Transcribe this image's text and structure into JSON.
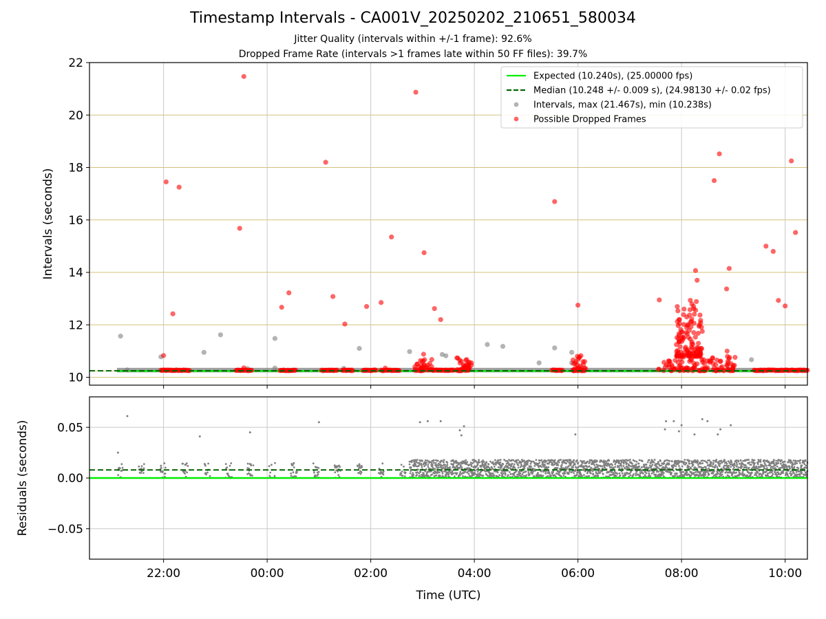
{
  "title": "Timestamp Intervals - CA001V_20250202_210651_580034",
  "subtitle_1": "Jitter Quality (intervals within +/-1 frame): 92.6%",
  "subtitle_2": "Dropped Frame Rate (intervals >1 frames late within 50 FF files): 39.7%",
  "colors": {
    "expected": "#00ee00",
    "median": "#006400",
    "intervals": "#808080",
    "dropped": "#ff0000",
    "hgrid": "#d4c17a",
    "vgrid": "#c8c8c8",
    "band": "#808080"
  },
  "chart_data": [
    {
      "type": "scatter",
      "xlabel": "",
      "ylabel": "Intervals (seconds)",
      "x_axis": "time (UTC), hours relative to 00:00 on 2025-02-03",
      "xlim": [
        -3.43,
        10.43
      ],
      "ylim": [
        9.7,
        22.0
      ],
      "yticks": [
        10,
        12,
        14,
        16,
        18,
        20,
        22
      ],
      "ytick_labels": [
        "10",
        "12",
        "14",
        "16",
        "18",
        "20",
        "22"
      ],
      "xticks": [
        -2,
        0,
        2,
        4,
        6,
        8,
        10
      ],
      "grid": {
        "horizontal": true,
        "vertical": true
      },
      "legend_position": "top-right",
      "series": [
        {
          "name": "Expected (10.240s), (25.00000 fps)",
          "kind": "line",
          "style": "solid",
          "y": 10.24,
          "x_range": [
            -2.9,
            10.43
          ]
        },
        {
          "name": "Median (10.248 +/- 0.009 s), (24.98130 +/- 0.02 fps)",
          "kind": "line",
          "style": "dashed",
          "y": 10.248,
          "x_range": [
            -3.43,
            10.43
          ]
        },
        {
          "name": "Intervals, max (21.467s), min (10.238s)",
          "kind": "scatter",
          "band": {
            "x_range": [
              -2.9,
              10.4
            ],
            "y_range": [
              10.24,
              10.36
            ]
          },
          "points": [
            [
              -2.83,
              11.57
            ],
            [
              -2.7,
              10.28
            ],
            [
              -2.05,
              10.78
            ],
            [
              -1.22,
              10.95
            ],
            [
              -0.9,
              11.62
            ],
            [
              -0.38,
              10.33
            ],
            [
              0.15,
              11.48
            ],
            [
              0.15,
              10.35
            ],
            [
              1.48,
              10.34
            ],
            [
              1.78,
              11.1
            ],
            [
              2.75,
              10.98
            ],
            [
              3.38,
              10.87
            ],
            [
              3.45,
              10.82
            ],
            [
              4.25,
              11.25
            ],
            [
              4.55,
              11.18
            ],
            [
              5.25,
              10.55
            ],
            [
              5.55,
              11.12
            ],
            [
              5.88,
              10.95
            ],
            [
              5.88,
              10.55
            ],
            [
              9.35,
              10.67
            ]
          ]
        },
        {
          "name": "Possible Dropped Frames",
          "kind": "scatter",
          "points": [
            [
              -0.45,
              21.47
            ],
            [
              2.87,
              20.87
            ],
            [
              1.13,
              18.2
            ],
            [
              -1.95,
              17.45
            ],
            [
              -1.7,
              17.25
            ],
            [
              5.55,
              16.7
            ],
            [
              8.73,
              18.52
            ],
            [
              8.63,
              17.5
            ],
            [
              10.12,
              18.25
            ],
            [
              -0.53,
              15.68
            ],
            [
              2.4,
              15.35
            ],
            [
              10.2,
              15.52
            ],
            [
              9.63,
              15.0
            ],
            [
              9.77,
              14.8
            ],
            [
              3.03,
              14.75
            ],
            [
              8.27,
              14.07
            ],
            [
              8.92,
              14.15
            ],
            [
              8.3,
              13.7
            ],
            [
              0.42,
              13.22
            ],
            [
              8.87,
              13.37
            ],
            [
              1.27,
              13.08
            ],
            [
              0.28,
              12.67
            ],
            [
              2.2,
              12.85
            ],
            [
              1.92,
              12.7
            ],
            [
              9.87,
              12.93
            ],
            [
              10.0,
              12.72
            ],
            [
              6.0,
              12.75
            ],
            [
              7.57,
              12.95
            ],
            [
              3.23,
              12.62
            ],
            [
              3.35,
              12.2
            ],
            [
              -1.82,
              12.42
            ],
            [
              1.5,
              12.03
            ],
            [
              8.1,
              12.3
            ],
            [
              8.4,
              11.75
            ],
            [
              -2.0,
              10.83
            ],
            [
              3.02,
              10.88
            ],
            [
              8.88,
              11.0
            ],
            [
              8.2,
              11.35
            ],
            [
              7.95,
              11.6
            ],
            [
              -0.45,
              10.36
            ],
            [
              2.28,
              10.35
            ]
          ],
          "clusters": [
            {
              "x_range": [
                -2.05,
                -1.5
              ],
              "y_range": [
                10.25,
                10.28
              ]
            },
            {
              "x_range": [
                -0.6,
                -0.3
              ],
              "y_range": [
                10.25,
                10.28
              ]
            },
            {
              "x_range": [
                0.25,
                0.55
              ],
              "y_range": [
                10.25,
                10.28
              ]
            },
            {
              "x_range": [
                1.05,
                1.35
              ],
              "y_range": [
                10.25,
                10.28
              ]
            },
            {
              "x_range": [
                1.45,
                1.65
              ],
              "y_range": [
                10.25,
                10.28
              ]
            },
            {
              "x_range": [
                1.85,
                2.1
              ],
              "y_range": [
                10.25,
                10.28
              ]
            },
            {
              "x_range": [
                2.2,
                2.55
              ],
              "y_range": [
                10.25,
                10.28
              ]
            },
            {
              "x_range": [
                2.85,
                3.2
              ],
              "y_range": [
                10.25,
                10.7
              ]
            },
            {
              "x_range": [
                3.2,
                3.6
              ],
              "y_range": [
                10.25,
                10.28
              ]
            },
            {
              "x_range": [
                3.65,
                3.95
              ],
              "y_range": [
                10.25,
                10.75
              ]
            },
            {
              "x_range": [
                5.5,
                5.7
              ],
              "y_range": [
                10.25,
                10.28
              ]
            },
            {
              "x_range": [
                5.9,
                6.15
              ],
              "y_range": [
                10.25,
                10.85
              ]
            },
            {
              "x_range": [
                7.55,
                9.05
              ],
              "y_range": [
                10.25,
                10.8
              ]
            },
            {
              "x_range": [
                7.9,
                8.4
              ],
              "y_range": [
                10.8,
                13.1
              ]
            },
            {
              "x_range": [
                9.4,
                10.43
              ],
              "y_range": [
                10.25,
                10.28
              ]
            }
          ]
        }
      ]
    },
    {
      "type": "scatter",
      "xlabel": "Time (UTC)",
      "ylabel": "Residuals (seconds)",
      "xlim": [
        -3.43,
        10.43
      ],
      "ylim": [
        -0.08,
        0.08
      ],
      "yticks": [
        -0.05,
        0.0,
        0.05
      ],
      "ytick_labels": [
        "−0.05",
        "0.00",
        "0.05"
      ],
      "xticks": [
        -2,
        0,
        2,
        4,
        6,
        8,
        10
      ],
      "xtick_labels": [
        "22:00",
        "00:00",
        "02:00",
        "04:00",
        "06:00",
        "08:00",
        "10:00"
      ],
      "grid": {
        "horizontal": true,
        "vertical": true
      },
      "series": [
        {
          "name": "Expected",
          "kind": "line",
          "style": "solid",
          "y": 0.0
        },
        {
          "name": "Median",
          "kind": "line",
          "style": "dashed",
          "y": 0.008
        },
        {
          "name": "Residuals",
          "kind": "scatter",
          "segments": [
            {
              "x_range": [
                -2.9,
                2.75
              ],
              "y_range": [
                0.0,
                0.015
              ],
              "gap_every_h": 0.42
            },
            {
              "x_range": [
                2.75,
                10.43
              ],
              "y_range": [
                0.0,
                0.018
              ]
            }
          ],
          "outliers": [
            [
              -2.7,
              0.061
            ],
            [
              -2.88,
              0.025
            ],
            [
              -1.3,
              0.041
            ],
            [
              -0.33,
              0.045
            ],
            [
              1.0,
              0.055
            ],
            [
              2.95,
              0.055
            ],
            [
              3.1,
              0.056
            ],
            [
              3.35,
              0.056
            ],
            [
              3.72,
              0.047
            ],
            [
              3.8,
              0.051
            ],
            [
              3.75,
              0.042
            ],
            [
              5.95,
              0.043
            ],
            [
              7.7,
              0.056
            ],
            [
              7.68,
              0.048
            ],
            [
              7.85,
              0.056
            ],
            [
              7.95,
              0.046
            ],
            [
              8.0,
              0.052
            ],
            [
              8.4,
              0.058
            ],
            [
              8.5,
              0.056
            ],
            [
              8.75,
              0.048
            ],
            [
              8.95,
              0.052
            ],
            [
              8.7,
              0.043
            ],
            [
              8.25,
              0.043
            ],
            [
              -2.05,
              0.012
            ]
          ]
        }
      ]
    }
  ]
}
